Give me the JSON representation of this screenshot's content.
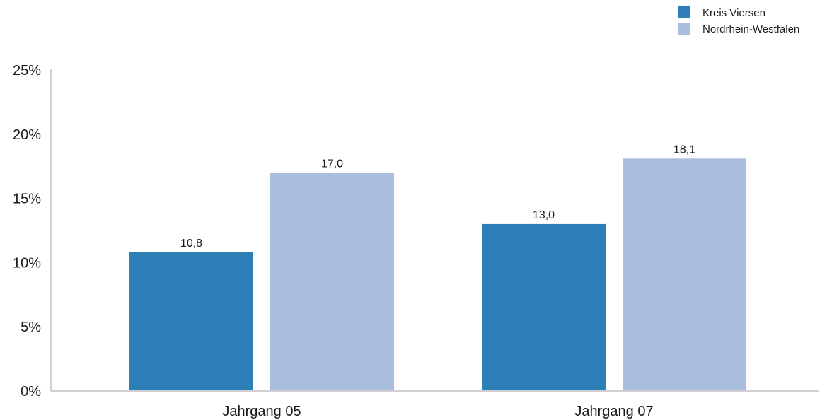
{
  "chart_data": {
    "type": "bar",
    "categories": [
      "Jahrgang 05",
      "Jahrgang 07"
    ],
    "series": [
      {
        "name": "Kreis Viersen",
        "values": [
          10.8,
          13.0
        ],
        "labels": [
          "10,8",
          "13,0"
        ],
        "color": "#2e7eb8"
      },
      {
        "name": "Nordrhein-Westfalen",
        "values": [
          17.0,
          18.1
        ],
        "labels": [
          "17,0",
          "18,1"
        ],
        "color": "#a9bedc"
      }
    ],
    "ylim": [
      0,
      25
    ],
    "yticks": [
      0,
      5,
      10,
      15,
      20,
      25
    ],
    "ytick_labels": [
      "0%",
      "5%",
      "10%",
      "15%",
      "20%",
      "25%"
    ],
    "grid": false,
    "legend": "top-right",
    "title": "",
    "xlabel": "",
    "ylabel": ""
  }
}
